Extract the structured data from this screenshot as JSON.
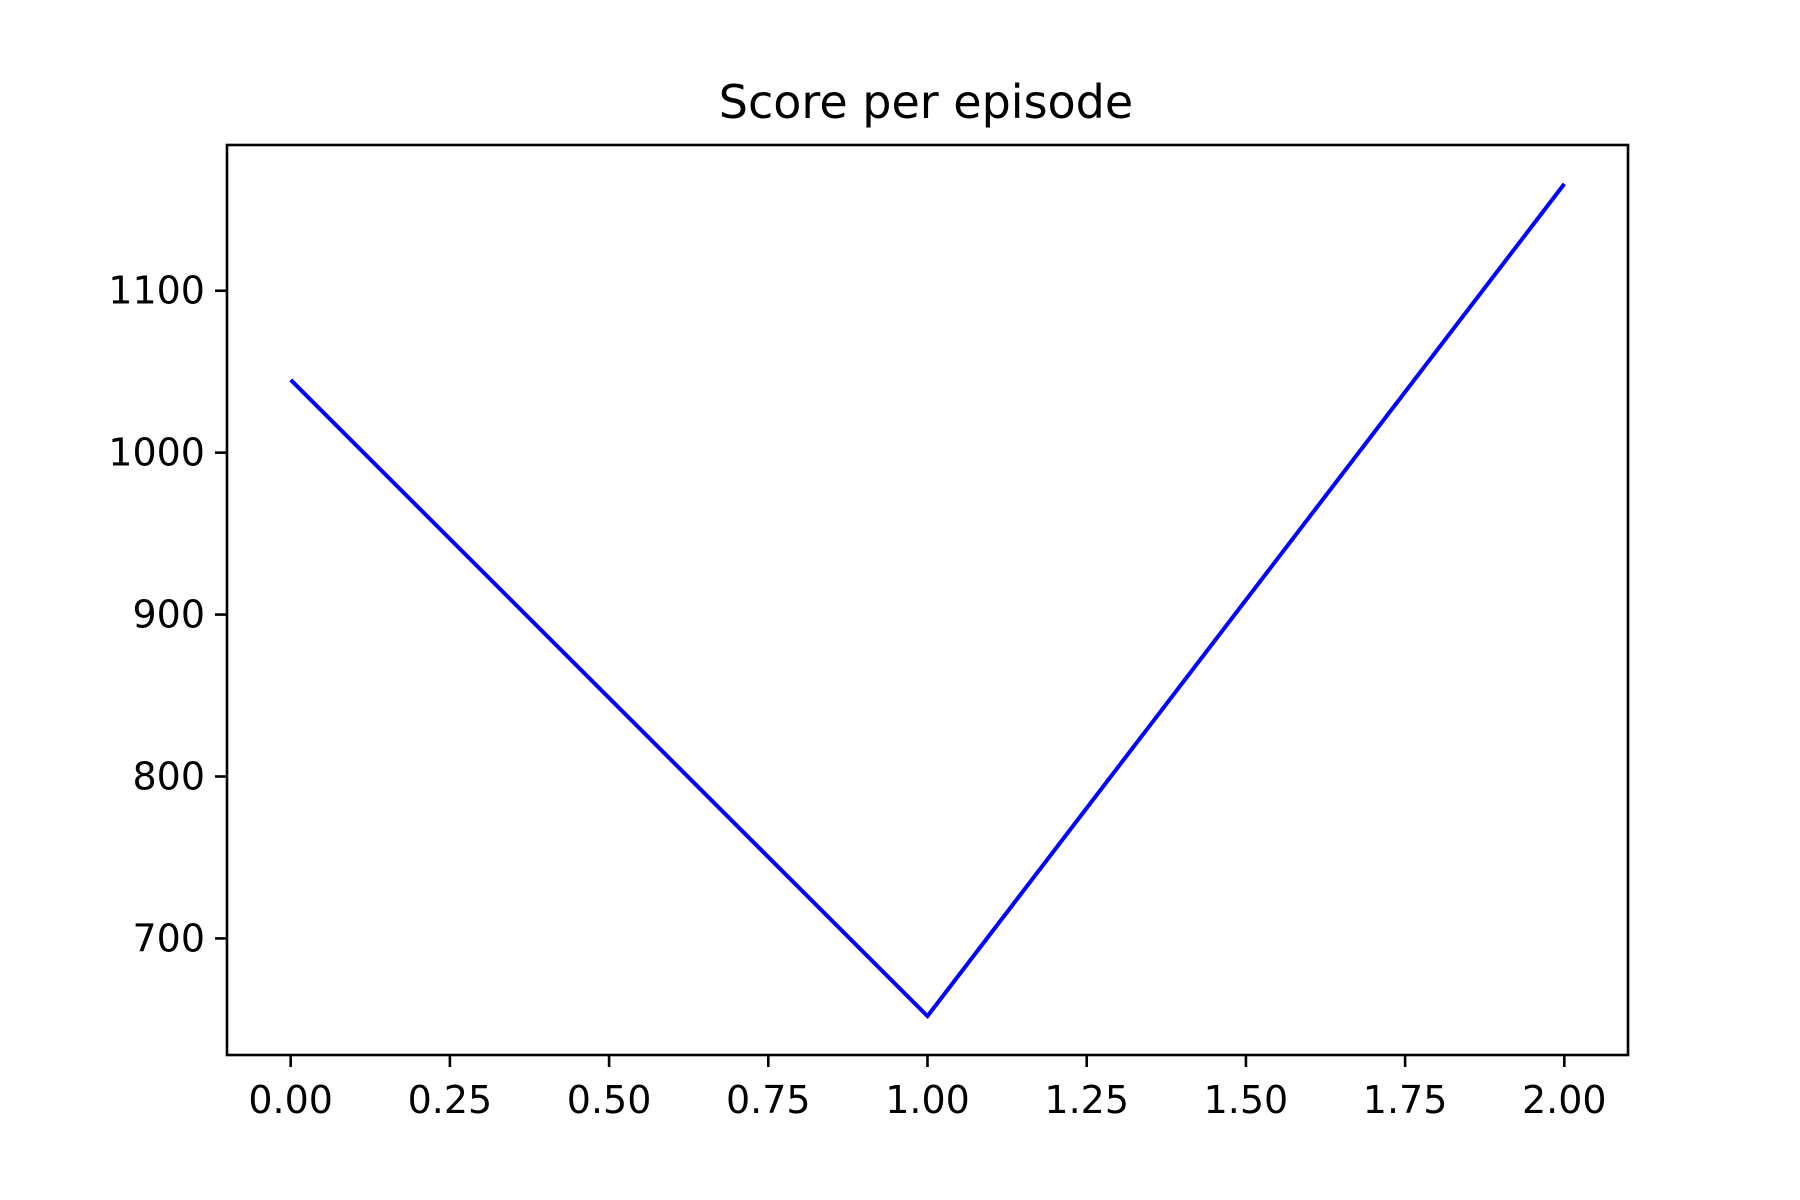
{
  "chart_data": {
    "type": "line",
    "title": "Score per episode",
    "xlabel": "",
    "ylabel": "",
    "xlim": [
      -0.1,
      2.1
    ],
    "ylim": [
      628,
      1190
    ],
    "x_ticks": [
      0.0,
      0.25,
      0.5,
      0.75,
      1.0,
      1.25,
      1.5,
      1.75,
      2.0
    ],
    "x_tick_labels": [
      "0.00",
      "0.25",
      "0.50",
      "0.75",
      "1.00",
      "1.25",
      "1.50",
      "1.75",
      "2.00"
    ],
    "y_ticks": [
      700,
      800,
      900,
      1000,
      1100
    ],
    "y_tick_labels": [
      "700",
      "800",
      "900",
      "1000",
      "1100"
    ],
    "grid": false,
    "series": [
      {
        "color": "#0000ff",
        "x": [
          0,
          1,
          2
        ],
        "y": [
          1045,
          652,
          1166
        ]
      }
    ]
  }
}
